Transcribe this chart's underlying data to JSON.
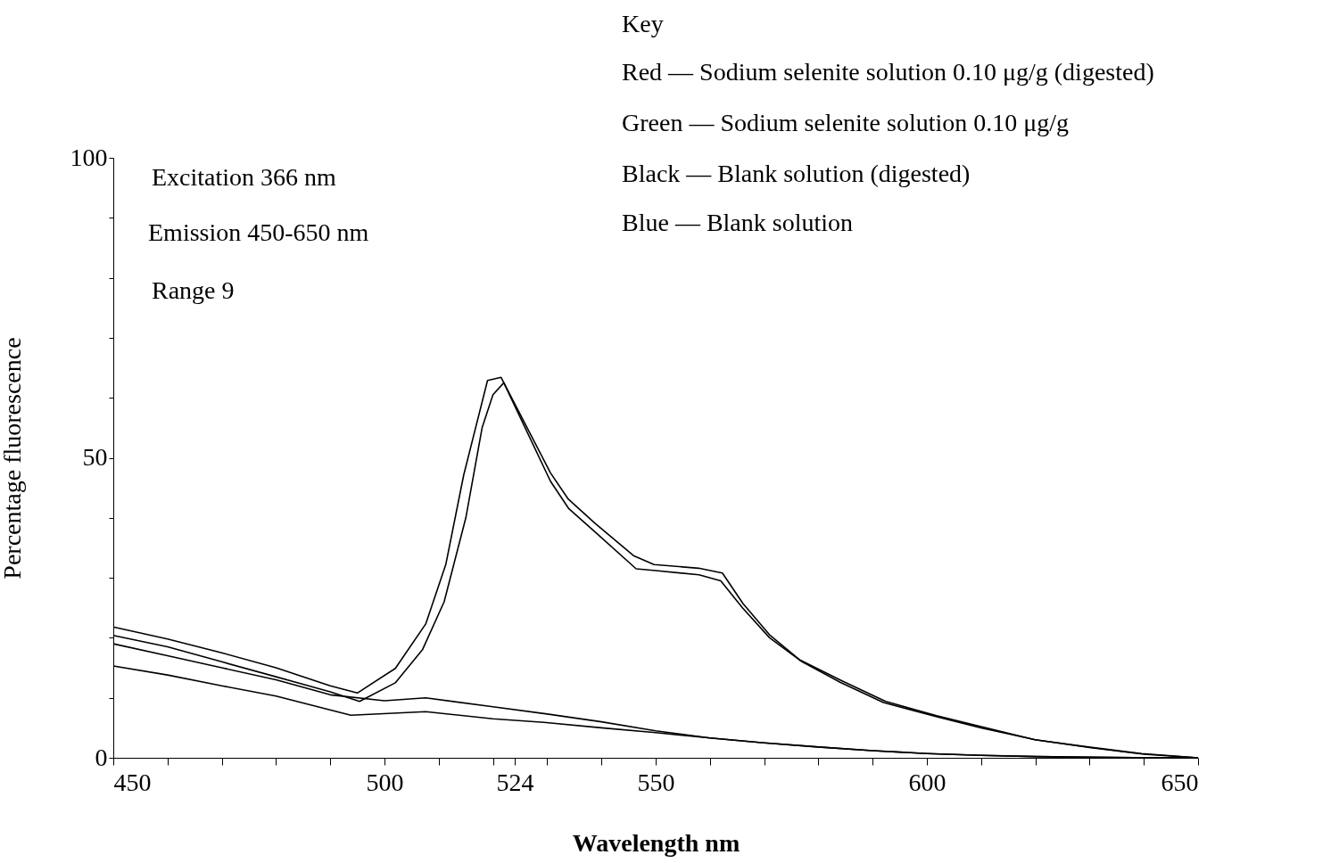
{
  "chart_data": {
    "type": "line",
    "xlabel": "Wavelength nm",
    "ylabel": "Percentage fluorescence",
    "xlim": [
      450,
      650
    ],
    "ylim": [
      0,
      100
    ],
    "xticks": [
      450,
      {
        "value": 460,
        "label": null
      },
      {
        "value": 470,
        "label": null
      },
      {
        "value": 480,
        "label": null
      },
      {
        "value": 490,
        "label": null
      },
      500,
      {
        "value": 510,
        "label": null
      },
      {
        "value": 520,
        "label": null
      },
      524,
      {
        "value": 530,
        "label": null
      },
      {
        "value": 540,
        "label": null
      },
      550,
      {
        "value": 560,
        "label": null
      },
      {
        "value": 570,
        "label": null
      },
      {
        "value": 580,
        "label": null
      },
      {
        "value": 590,
        "label": null
      },
      600,
      {
        "value": 610,
        "label": null
      },
      {
        "value": 620,
        "label": null
      },
      {
        "value": 630,
        "label": null
      },
      {
        "value": 640,
        "label": null
      },
      650
    ],
    "yticks": [
      0,
      {
        "value": 10,
        "label": null
      },
      {
        "value": 20,
        "label": null
      },
      {
        "value": 30,
        "label": null
      },
      {
        "value": 40,
        "label": null
      },
      50,
      {
        "value": 60,
        "label": null
      },
      {
        "value": 70,
        "label": null
      },
      {
        "value": 80,
        "label": null
      },
      {
        "value": 90,
        "label": null
      },
      100
    ],
    "grid": false,
    "legend": false,
    "line_style": "solid",
    "marker": "none",
    "annotations": [
      "Excitation 366 nm",
      "Emission  450-650 nm",
      "Range 9",
      "Key",
      "Red    — Sodium selenite solution 0.10 μg/g  (digested)",
      "Green — Sodium selenite solution  0.10 μg/g",
      "Black  — Blank solution  (digested)",
      "Blue    — Blank solution"
    ],
    "series": [
      {
        "color": "#000000",
        "x": [
          450,
          460,
          470,
          480,
          490,
          495,
          502,
          507.6,
          511.3,
          514.6,
          519,
          521.5,
          530.6,
          533.9,
          538.8,
          545.9,
          549.7,
          557.9,
          562.3,
          566.1,
          571.1,
          576.6,
          584.2,
          592.4,
          601.8,
          610,
          619.9,
          629.8,
          639.6,
          650
        ],
        "values": [
          21.8,
          19.8,
          17.5,
          15,
          12,
          10.8,
          14.9,
          22.3,
          32.2,
          47.1,
          62.9,
          63.4,
          47.5,
          43.1,
          39.1,
          33.7,
          32.2,
          31.6,
          30.8,
          25.7,
          20.4,
          16.3,
          12.9,
          9.4,
          7,
          5.2,
          3,
          1.8,
          0.7,
          0
        ]
      },
      {
        "color": "#000000",
        "x": [
          450,
          460,
          470,
          480,
          490,
          495.4,
          502,
          507,
          511,
          515,
          518,
          520,
          522,
          530.6,
          534,
          539,
          546.4,
          550,
          558,
          562,
          566,
          571,
          577,
          584,
          592,
          602,
          610,
          620,
          630,
          640,
          650
        ],
        "values": [
          20.4,
          18.5,
          16,
          13.5,
          11,
          9.4,
          12.5,
          18,
          26,
          40,
          55,
          60.5,
          62.5,
          46.1,
          41.5,
          37.5,
          31.5,
          31.2,
          30.5,
          29.5,
          25,
          20,
          16,
          12.6,
          9.2,
          6.8,
          5,
          3,
          1.7,
          0.6,
          0
        ]
      },
      {
        "color": "#000000",
        "x": [
          450,
          460,
          470,
          480,
          490,
          500,
          507.6,
          520,
          530,
          540,
          550,
          560,
          570,
          580,
          590,
          600,
          610,
          620,
          630,
          640,
          650
        ],
        "values": [
          19,
          17,
          15,
          13,
          10.5,
          9.5,
          10,
          8.5,
          7.3,
          6,
          4.5,
          3.3,
          2.5,
          1.8,
          1.2,
          0.7,
          0.4,
          0.2,
          0.1,
          0,
          0
        ]
      },
      {
        "color": "#000000",
        "x": [
          450,
          460,
          470,
          480,
          493.8,
          507.6,
          520,
          529.4,
          540,
          550,
          560,
          570,
          580,
          590,
          600,
          610,
          620,
          630,
          640,
          650
        ],
        "values": [
          15.3,
          13.8,
          12,
          10.3,
          7.1,
          7.7,
          6.5,
          5.9,
          5,
          4.2,
          3.3,
          2.5,
          1.8,
          1.2,
          0.7,
          0.4,
          0.2,
          0.1,
          0,
          0
        ]
      }
    ]
  }
}
